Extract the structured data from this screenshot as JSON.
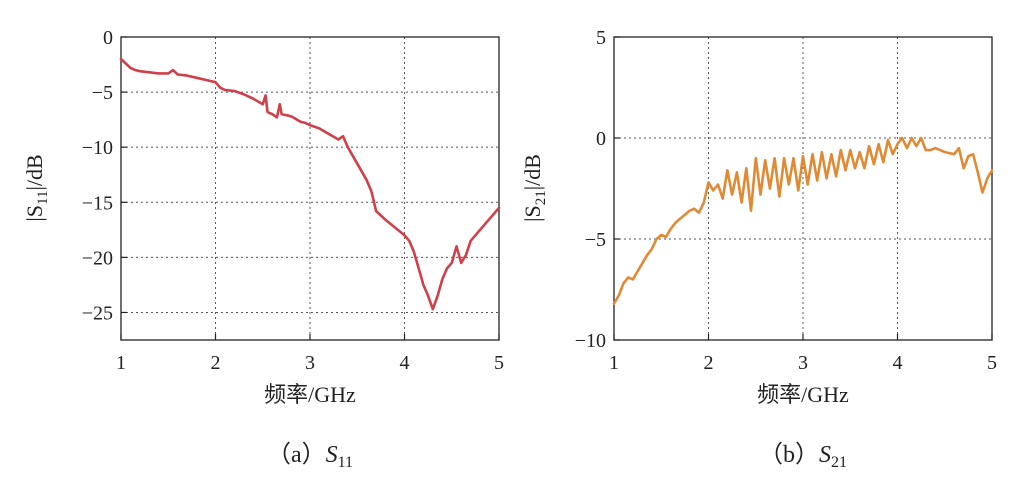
{
  "chart_data": [
    {
      "type": "line",
      "xlabel": "频率/GHz",
      "ylabel_prefix": "|S",
      "ylabel_sub": "11",
      "ylabel_suffix": "|/dB",
      "caption_prefix": "（a）",
      "caption_var": "S",
      "caption_sub": "11",
      "xlim": [
        1,
        5
      ],
      "ylim": [
        -27.5,
        0
      ],
      "xticks": [
        1,
        2,
        3,
        4,
        5
      ],
      "yticks": [
        0,
        -5,
        -10,
        -15,
        -20,
        -25
      ],
      "ytick_labels": [
        "0",
        "−5",
        "−10",
        "−15",
        "−20",
        "−25"
      ],
      "grid": true,
      "color": "#d0404a",
      "series": [
        {
          "name": "S11",
          "x": [
            1.0,
            1.05,
            1.1,
            1.15,
            1.2,
            1.3,
            1.4,
            1.5,
            1.55,
            1.6,
            1.7,
            1.8,
            1.9,
            2.0,
            2.05,
            2.1,
            2.2,
            2.3,
            2.4,
            2.5,
            2.53,
            2.55,
            2.57,
            2.6,
            2.65,
            2.68,
            2.7,
            2.75,
            2.8,
            2.9,
            2.95,
            3.0,
            3.1,
            3.2,
            3.3,
            3.35,
            3.4,
            3.5,
            3.6,
            3.65,
            3.7,
            3.75,
            3.8,
            3.9,
            4.0,
            4.05,
            4.1,
            4.15,
            4.2,
            4.25,
            4.3,
            4.35,
            4.4,
            4.45,
            4.5,
            4.55,
            4.6,
            4.65,
            4.7,
            4.8,
            4.9,
            5.0
          ],
          "y": [
            -2.0,
            -2.4,
            -2.8,
            -3.0,
            -3.1,
            -3.2,
            -3.3,
            -3.3,
            -3.0,
            -3.4,
            -3.5,
            -3.7,
            -3.9,
            -4.1,
            -4.6,
            -4.8,
            -4.9,
            -5.2,
            -5.6,
            -6.1,
            -5.3,
            -6.8,
            -6.9,
            -7.0,
            -7.3,
            -6.1,
            -7.0,
            -7.1,
            -7.2,
            -7.7,
            -7.8,
            -8.0,
            -8.3,
            -8.8,
            -9.3,
            -9.0,
            -10.0,
            -11.5,
            -13.0,
            -14.0,
            -15.8,
            -16.2,
            -16.6,
            -17.3,
            -18.0,
            -18.5,
            -19.5,
            -21.0,
            -22.5,
            -23.5,
            -24.7,
            -23.5,
            -22.0,
            -21.0,
            -20.5,
            -19.0,
            -20.5,
            -19.8,
            -18.5,
            -17.5,
            -16.5,
            -15.5
          ]
        }
      ]
    },
    {
      "type": "line",
      "xlabel": "频率/GHz",
      "ylabel_prefix": "|S",
      "ylabel_sub": "21",
      "ylabel_suffix": "|/dB",
      "caption_prefix": "（b）",
      "caption_var": "S",
      "caption_sub": "21",
      "xlim": [
        1,
        5
      ],
      "ylim": [
        -10,
        5
      ],
      "xticks": [
        1,
        2,
        3,
        4,
        5
      ],
      "yticks": [
        5,
        0,
        -5,
        -10
      ],
      "ytick_labels": [
        "5",
        "0",
        "−5",
        "−10"
      ],
      "grid": true,
      "color": "#e08a35",
      "series": [
        {
          "name": "S21",
          "x": [
            1.0,
            1.05,
            1.1,
            1.15,
            1.2,
            1.3,
            1.35,
            1.4,
            1.45,
            1.5,
            1.55,
            1.6,
            1.65,
            1.7,
            1.8,
            1.85,
            1.9,
            1.95,
            2.0,
            2.05,
            2.1,
            2.15,
            2.2,
            2.25,
            2.3,
            2.35,
            2.4,
            2.45,
            2.5,
            2.55,
            2.6,
            2.65,
            2.7,
            2.75,
            2.8,
            2.85,
            2.9,
            2.95,
            3.0,
            3.05,
            3.1,
            3.15,
            3.2,
            3.25,
            3.3,
            3.35,
            3.4,
            3.45,
            3.5,
            3.55,
            3.6,
            3.65,
            3.7,
            3.75,
            3.8,
            3.85,
            3.9,
            3.95,
            4.0,
            4.05,
            4.1,
            4.15,
            4.2,
            4.25,
            4.3,
            4.35,
            4.4,
            4.5,
            4.6,
            4.65,
            4.7,
            4.75,
            4.8,
            4.85,
            4.9,
            4.95,
            5.0
          ],
          "y": [
            -8.2,
            -7.8,
            -7.2,
            -6.9,
            -7.0,
            -6.2,
            -5.8,
            -5.5,
            -5.0,
            -4.8,
            -4.9,
            -4.5,
            -4.2,
            -4.0,
            -3.6,
            -3.5,
            -3.7,
            -3.2,
            -2.2,
            -2.6,
            -2.3,
            -3.0,
            -1.6,
            -2.8,
            -1.7,
            -3.2,
            -1.5,
            -3.6,
            -1.0,
            -2.8,
            -1.1,
            -2.5,
            -1.0,
            -2.9,
            -1.0,
            -2.3,
            -1.0,
            -2.6,
            -0.9,
            -2.3,
            -0.8,
            -2.1,
            -0.7,
            -2.0,
            -0.8,
            -1.9,
            -0.6,
            -1.6,
            -0.6,
            -1.5,
            -0.7,
            -1.5,
            -0.4,
            -1.3,
            -0.3,
            -1.2,
            -0.1,
            -0.8,
            -0.3,
            0.0,
            -0.5,
            0.0,
            -0.4,
            0.0,
            -0.6,
            -0.6,
            -0.5,
            -0.7,
            -0.8,
            -0.5,
            -1.5,
            -0.9,
            -0.8,
            -1.7,
            -2.7,
            -2.0,
            -1.6
          ]
        }
      ]
    }
  ]
}
